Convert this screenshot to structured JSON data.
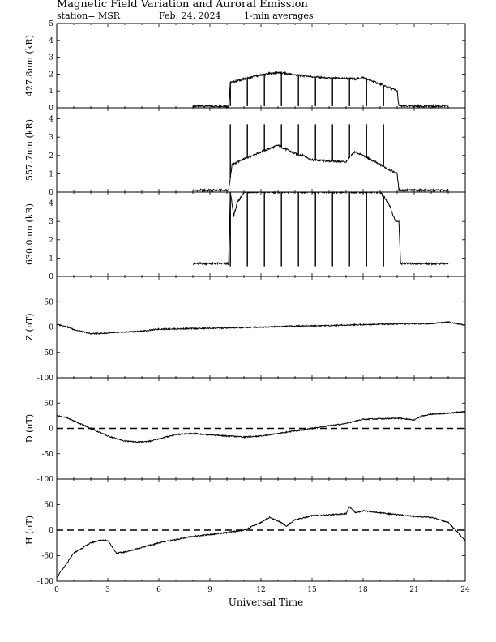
{
  "header": {
    "title": "Magnetic Field Variation and Auroral Emission",
    "station": "station= MSR",
    "date": "Feb. 24, 2024",
    "averaging": "1-min averages"
  },
  "chart_data": [
    {
      "type": "line",
      "ylabel": "427.8nm (kR)",
      "ylim": [
        0,
        5
      ],
      "yticks": [
        0,
        1,
        2,
        3,
        4,
        5
      ],
      "xlim": [
        0,
        24
      ],
      "data_range": [
        8.0,
        23.0
      ],
      "series": [
        {
          "x": [
            8.0,
            10.1,
            10.2,
            11.0,
            12.0,
            13.0,
            14.0,
            15.0,
            16.0,
            17.0,
            17.5,
            18.0,
            19.0,
            20.0,
            20.1,
            23.0
          ],
          "values": [
            0.1,
            0.1,
            1.5,
            1.7,
            1.95,
            2.1,
            1.95,
            1.85,
            1.75,
            1.75,
            1.7,
            1.8,
            1.4,
            1.0,
            0.1,
            0.1
          ]
        }
      ],
      "calibration_spikes": {
        "x": [
          10.2,
          11.2,
          12.2,
          13.2,
          14.2,
          15.2,
          16.2,
          17.2,
          18.2,
          19.2
        ],
        "top": 0.1
      }
    },
    {
      "type": "line",
      "ylabel": "557.7nm (kR)",
      "ylim": [
        0,
        4.6
      ],
      "yticks": [
        0,
        1,
        2,
        3,
        4
      ],
      "xlim": [
        0,
        24
      ],
      "data_range": [
        8.0,
        23.0
      ],
      "series": [
        {
          "x": [
            8.0,
            10.1,
            10.3,
            11.0,
            12.0,
            13.0,
            14.0,
            14.5,
            15.0,
            16.0,
            17.0,
            17.5,
            18.0,
            19.0,
            20.0,
            20.1,
            23.0
          ],
          "values": [
            0.1,
            0.1,
            1.5,
            1.8,
            2.2,
            2.55,
            2.1,
            2.0,
            1.75,
            1.7,
            1.65,
            2.2,
            2.0,
            1.5,
            1.0,
            0.1,
            0.1
          ]
        }
      ],
      "calibration_spikes": {
        "x": [
          10.2,
          11.2,
          12.2,
          13.2,
          14.2,
          15.2,
          16.2,
          17.2,
          18.2,
          19.2
        ],
        "top": 3.7
      }
    },
    {
      "type": "line",
      "ylabel": "630.0nm (kR)",
      "ylim": [
        0,
        4.6
      ],
      "yticks": [
        0,
        1,
        2,
        3,
        4
      ],
      "xlim": [
        0,
        24
      ],
      "data_range": [
        8.0,
        23.0
      ],
      "series": [
        {
          "x": [
            8.0,
            10.1,
            10.2,
            10.4,
            10.6,
            11.0,
            15.0,
            19.0,
            19.5,
            19.9,
            20.1,
            20.2,
            23.0
          ],
          "values": [
            0.7,
            0.7,
            4.6,
            3.3,
            4.0,
            4.6,
            4.6,
            4.6,
            4.0,
            3.0,
            3.0,
            0.7,
            0.7
          ]
        }
      ],
      "calibration_spikes": {
        "x": [
          10.2,
          11.2,
          12.2,
          13.2,
          14.2,
          15.2,
          16.2,
          17.2,
          18.2,
          19.2
        ],
        "top": 0.55
      }
    },
    {
      "type": "line",
      "ylabel": "Z (nT)",
      "ylim": [
        -100,
        100
      ],
      "yticks": [
        -100,
        -50,
        0,
        50
      ],
      "xlim": [
        0,
        24
      ],
      "zero_line": "thin-dashed",
      "series": [
        {
          "x": [
            0,
            0.5,
            1.0,
            2.0,
            3.0,
            4.0,
            5.0,
            6.0,
            8.0,
            10.0,
            12.0,
            14.0,
            16.0,
            18.0,
            20.0,
            22.0,
            23.0,
            24.0
          ],
          "values": [
            5,
            2,
            -5,
            -13,
            -12,
            -10,
            -8,
            -4,
            -3,
            -2,
            0,
            2,
            3,
            5,
            6,
            7,
            10,
            4
          ]
        }
      ]
    },
    {
      "type": "line",
      "ylabel": "D (nT)",
      "ylim": [
        -100,
        100
      ],
      "yticks": [
        -100,
        -50,
        0,
        50
      ],
      "xlim": [
        0,
        24
      ],
      "zero_line": "thick-dashed",
      "series": [
        {
          "x": [
            0,
            0.5,
            1.0,
            2.0,
            3.0,
            4.0,
            4.8,
            5.5,
            7.0,
            8.0,
            10.0,
            11.0,
            12.0,
            14.0,
            16.0,
            17.0,
            18.0,
            20.0,
            21.0,
            21.5,
            22.0,
            23.0,
            24.0
          ],
          "values": [
            25,
            22,
            15,
            0,
            -15,
            -25,
            -27,
            -25,
            -12,
            -10,
            -15,
            -17,
            -15,
            -5,
            5,
            10,
            18,
            20,
            17,
            25,
            28,
            30,
            33
          ]
        }
      ]
    },
    {
      "type": "line",
      "ylabel": "H (nT)",
      "ylim": [
        -100,
        100
      ],
      "yticks": [
        -100,
        -50,
        0,
        50
      ],
      "xlim": [
        0,
        24
      ],
      "zero_line": "thick-dashed",
      "series": [
        {
          "x": [
            0,
            0.5,
            1.0,
            2.0,
            2.5,
            3.0,
            3.5,
            4.0,
            6.0,
            8.0,
            10.0,
            11.0,
            12.0,
            12.5,
            13.0,
            13.5,
            14.0,
            15.0,
            17.0,
            17.2,
            17.6,
            18.0,
            20.0,
            21.0,
            22.0,
            23.0,
            24.0
          ],
          "values": [
            -92,
            -70,
            -45,
            -25,
            -20,
            -20,
            -45,
            -43,
            -25,
            -12,
            -5,
            0,
            15,
            25,
            18,
            8,
            20,
            28,
            32,
            46,
            33,
            38,
            30,
            27,
            25,
            15,
            -20
          ]
        }
      ]
    }
  ],
  "x_axis": {
    "xlabel": "Universal Time",
    "ticks": [
      0,
      3,
      6,
      9,
      12,
      15,
      18,
      21,
      24
    ],
    "minor_step": 1
  }
}
